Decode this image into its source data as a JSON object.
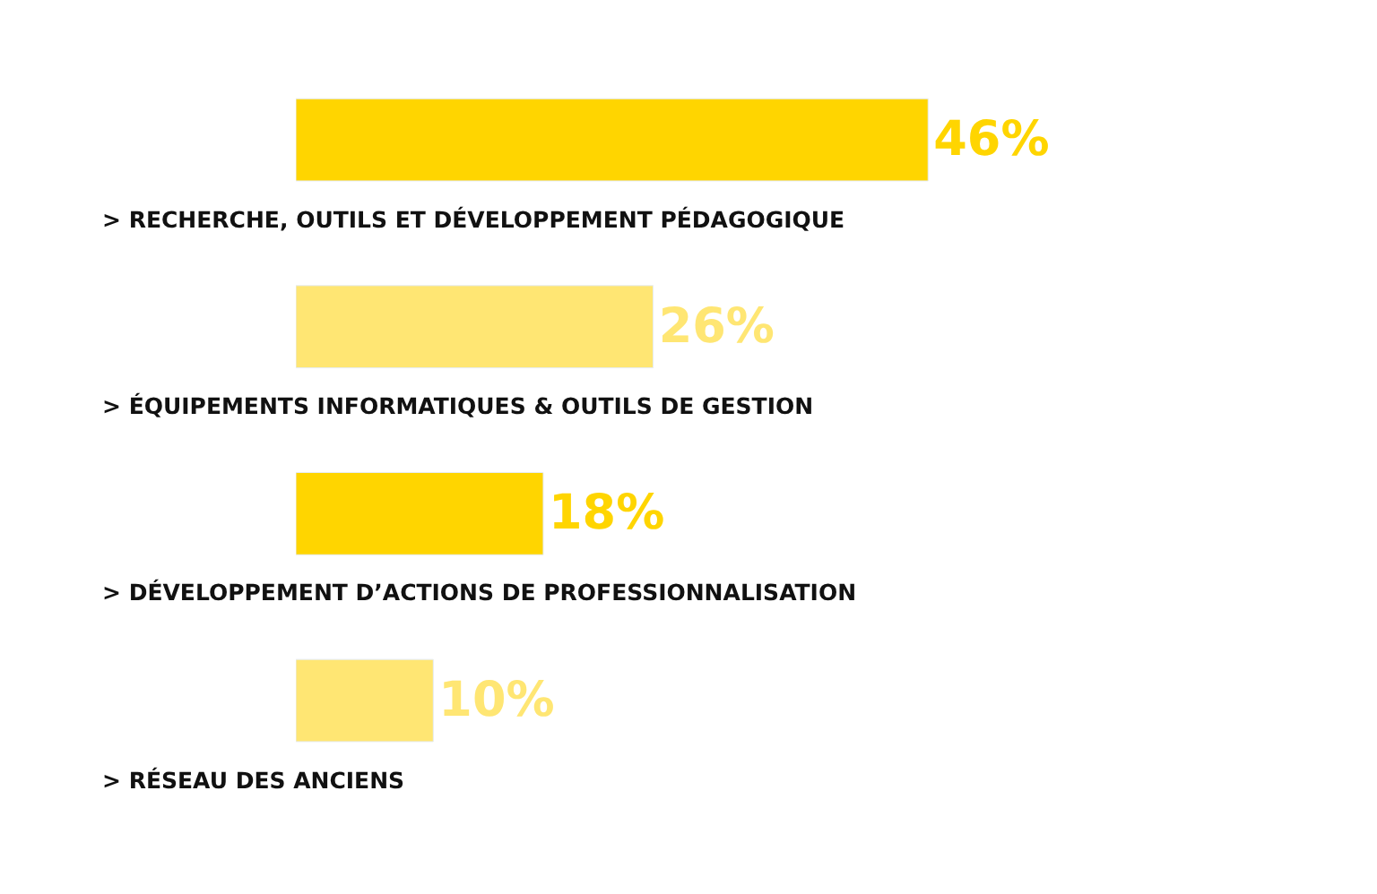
{
  "chart_data": {
    "type": "bar",
    "orientation": "horizontal",
    "categories": [
      "> RECHERCHE, OUTILS ET DÉVELOPPEMENT PÉDAGOGIQUE",
      "> ÉQUIPEMENTS INFORMATIQUES & OUTILS DE GESTION",
      "> DÉVELOPPEMENT D’ACTIONS DE PROFESSIONNALISATION",
      "> RÉSEAU DES ANCIENS"
    ],
    "values": [
      46,
      26,
      18,
      10
    ],
    "value_labels": [
      "46%",
      "26%",
      "18%",
      "10%"
    ],
    "colors": [
      "#ffd500",
      "#ffe673",
      "#ffd500",
      "#ffe673"
    ]
  }
}
